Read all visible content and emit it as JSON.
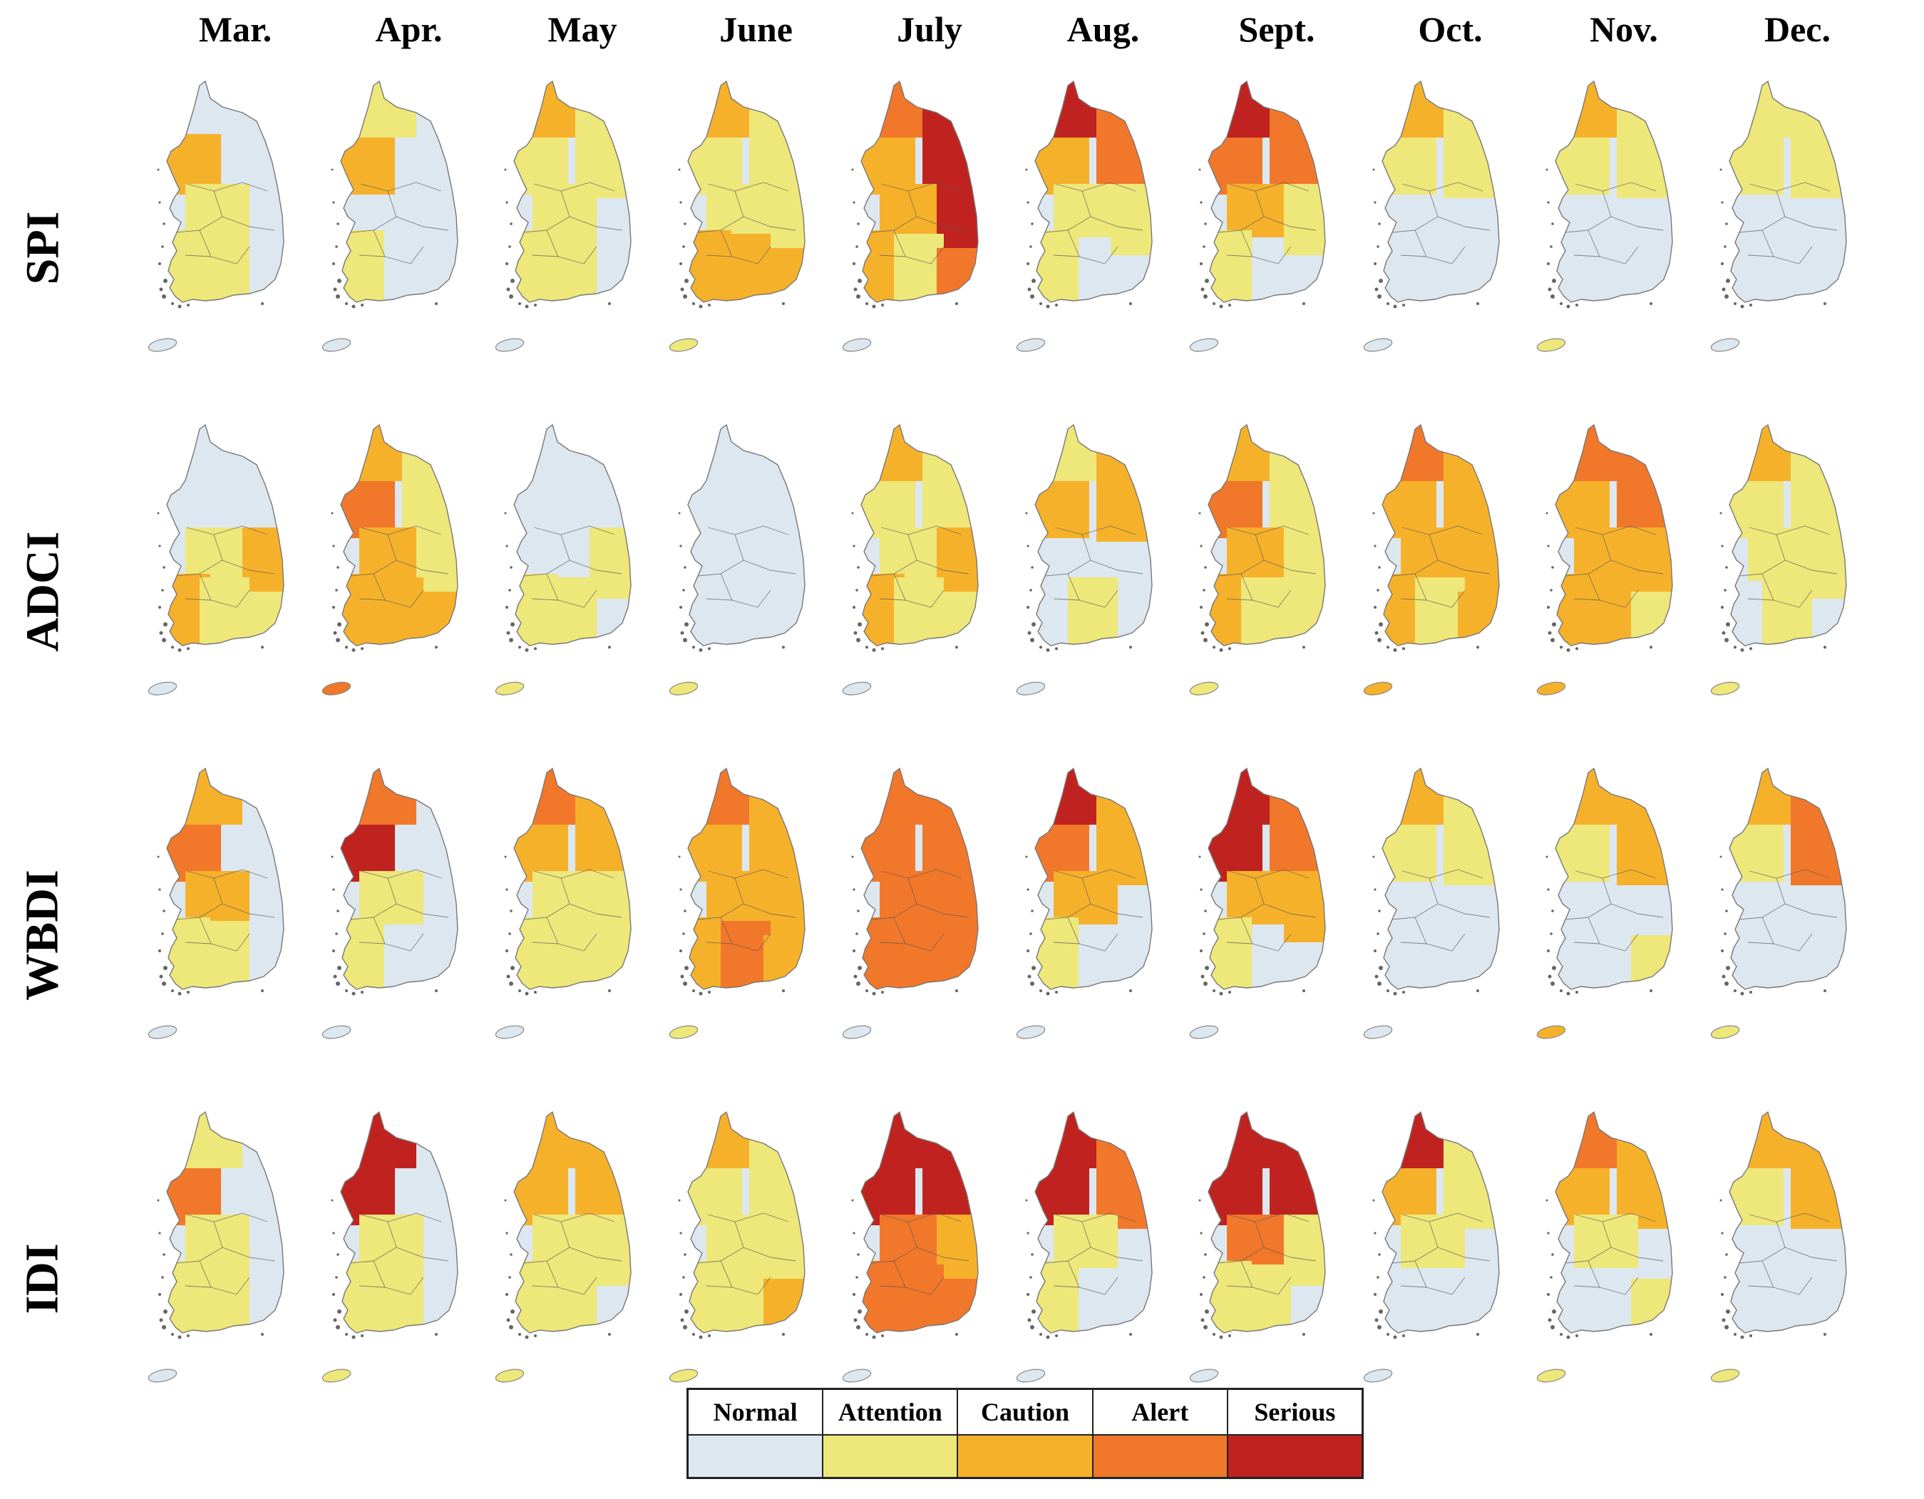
{
  "months": [
    "Mar.",
    "Apr.",
    "May",
    "June",
    "July",
    "Aug.",
    "Sept.",
    "Oct.",
    "Nov.",
    "Dec."
  ],
  "indices": [
    "SPI",
    "ADCI",
    "WBDI",
    "IDI"
  ],
  "legend": [
    {
      "label": "Normal",
      "color": "#dde7f0"
    },
    {
      "label": "Attention",
      "color": "#eee77a"
    },
    {
      "label": "Caution",
      "color": "#f6b12b"
    },
    {
      "label": "Alert",
      "color": "#f1772a"
    },
    {
      "label": "Serious",
      "color": "#c0231f"
    }
  ],
  "maps": {
    "SPI": [
      {
        "month": "Mar.",
        "severity": {
          "northwest": "Caution",
          "north": "Normal",
          "northeast": "Normal",
          "center": "Attention",
          "east": "Normal",
          "southwest": "Attention",
          "south": "Attention",
          "southeast": "Normal",
          "jeju": "Normal"
        }
      },
      {
        "month": "Apr.",
        "severity": {
          "northwest": "Caution",
          "north": "Attention",
          "northeast": "Normal",
          "center": "Normal",
          "east": "Normal",
          "southwest": "Attention",
          "south": "Normal",
          "southeast": "Normal",
          "jeju": "Normal"
        }
      },
      {
        "month": "May",
        "severity": {
          "northwest": "Attention",
          "north": "Caution",
          "northeast": "Attention",
          "center": "Attention",
          "east": "Normal",
          "southwest": "Attention",
          "south": "Attention",
          "southeast": "Normal",
          "jeju": "Normal"
        }
      },
      {
        "month": "June",
        "severity": {
          "northwest": "Attention",
          "north": "Caution",
          "northeast": "Attention",
          "center": "Attention",
          "east": "Attention",
          "southwest": "Caution",
          "south": "Caution",
          "southeast": "Caution",
          "jeju": "Attention"
        }
      },
      {
        "month": "July",
        "severity": {
          "northwest": "Caution",
          "north": "Alert",
          "northeast": "Serious",
          "center": "Caution",
          "east": "Serious",
          "southwest": "Caution",
          "south": "Attention",
          "southeast": "Alert",
          "jeju": "Normal"
        }
      },
      {
        "month": "Aug.",
        "severity": {
          "northwest": "Caution",
          "north": "Serious",
          "northeast": "Alert",
          "center": "Attention",
          "east": "Attention",
          "southwest": "Attention",
          "south": "Normal",
          "southeast": "Normal",
          "jeju": "Normal"
        }
      },
      {
        "month": "Sept.",
        "severity": {
          "northwest": "Alert",
          "north": "Serious",
          "northeast": "Alert",
          "center": "Caution",
          "east": "Attention",
          "southwest": "Attention",
          "south": "Normal",
          "southeast": "Normal",
          "jeju": "Normal"
        }
      },
      {
        "month": "Oct.",
        "severity": {
          "northwest": "Attention",
          "north": "Caution",
          "northeast": "Attention",
          "center": "Normal",
          "east": "Normal",
          "southwest": "Normal",
          "south": "Normal",
          "southeast": "Normal",
          "jeju": "Normal"
        }
      },
      {
        "month": "Nov.",
        "severity": {
          "northwest": "Attention",
          "north": "Caution",
          "northeast": "Attention",
          "center": "Normal",
          "east": "Normal",
          "southwest": "Normal",
          "south": "Normal",
          "southeast": "Normal",
          "jeju": "Attention"
        }
      },
      {
        "month": "Dec.",
        "severity": {
          "northwest": "Attention",
          "north": "Attention",
          "northeast": "Attention",
          "center": "Normal",
          "east": "Normal",
          "southwest": "Normal",
          "south": "Normal",
          "southeast": "Normal",
          "jeju": "Normal"
        }
      }
    ],
    "ADCI": [
      {
        "month": "Mar.",
        "severity": {
          "northwest": "Normal",
          "north": "Normal",
          "northeast": "Normal",
          "center": "Attention",
          "east": "Caution",
          "southwest": "Caution",
          "south": "Attention",
          "southeast": "Attention",
          "jeju": "Normal"
        }
      },
      {
        "month": "Apr.",
        "severity": {
          "northwest": "Alert",
          "north": "Caution",
          "northeast": "Attention",
          "center": "Caution",
          "east": "Attention",
          "southwest": "Caution",
          "south": "Caution",
          "southeast": "Caution",
          "jeju": "Alert"
        }
      },
      {
        "month": "May",
        "severity": {
          "northwest": "Normal",
          "north": "Normal",
          "northeast": "Normal",
          "center": "Normal",
          "east": "Attention",
          "southwest": "Attention",
          "south": "Attention",
          "southeast": "Normal",
          "jeju": "Attention"
        }
      },
      {
        "month": "June",
        "severity": {
          "northwest": "Normal",
          "north": "Normal",
          "northeast": "Normal",
          "center": "Normal",
          "east": "Normal",
          "southwest": "Normal",
          "south": "Normal",
          "southeast": "Normal",
          "jeju": "Attention"
        }
      },
      {
        "month": "July",
        "severity": {
          "northwest": "Attention",
          "north": "Caution",
          "northeast": "Attention",
          "center": "Attention",
          "east": "Caution",
          "southwest": "Caution",
          "south": "Attention",
          "southeast": "Attention",
          "jeju": "Normal"
        }
      },
      {
        "month": "Aug.",
        "severity": {
          "northwest": "Caution",
          "north": "Attention",
          "northeast": "Caution",
          "center": "Normal",
          "east": "Normal",
          "southwest": "Normal",
          "south": "Attention",
          "southeast": "Normal",
          "jeju": "Normal"
        }
      },
      {
        "month": "Sept.",
        "severity": {
          "northwest": "Alert",
          "north": "Caution",
          "northeast": "Attention",
          "center": "Caution",
          "east": "Attention",
          "southwest": "Caution",
          "south": "Attention",
          "southeast": "Attention",
          "jeju": "Attention"
        }
      },
      {
        "month": "Oct.",
        "severity": {
          "northwest": "Caution",
          "north": "Alert",
          "northeast": "Caution",
          "center": "Caution",
          "east": "Caution",
          "southwest": "Caution",
          "south": "Attention",
          "southeast": "Caution",
          "jeju": "Caution"
        }
      },
      {
        "month": "Nov.",
        "severity": {
          "northwest": "Caution",
          "north": "Alert",
          "northeast": "Alert",
          "center": "Caution",
          "east": "Caution",
          "southwest": "Caution",
          "south": "Caution",
          "southeast": "Attention",
          "jeju": "Caution"
        }
      },
      {
        "month": "Dec.",
        "severity": {
          "northwest": "Attention",
          "north": "Caution",
          "northeast": "Attention",
          "center": "Attention",
          "east": "Attention",
          "southwest": "Normal",
          "south": "Attention",
          "southeast": "Normal",
          "jeju": "Attention"
        }
      }
    ],
    "WBDI": [
      {
        "month": "Mar.",
        "severity": {
          "northwest": "Alert",
          "north": "Caution",
          "northeast": "Normal",
          "center": "Caution",
          "east": "Normal",
          "southwest": "Attention",
          "south": "Attention",
          "southeast": "Normal",
          "jeju": "Normal"
        }
      },
      {
        "month": "Apr.",
        "severity": {
          "northwest": "Serious",
          "north": "Alert",
          "northeast": "Normal",
          "center": "Attention",
          "east": "Normal",
          "southwest": "Attention",
          "south": "Normal",
          "southeast": "Normal",
          "jeju": "Normal"
        }
      },
      {
        "month": "May",
        "severity": {
          "northwest": "Caution",
          "north": "Alert",
          "northeast": "Caution",
          "center": "Attention",
          "east": "Attention",
          "southwest": "Attention",
          "south": "Attention",
          "southeast": "Attention",
          "jeju": "Normal"
        }
      },
      {
        "month": "June",
        "severity": {
          "northwest": "Caution",
          "north": "Alert",
          "northeast": "Caution",
          "center": "Caution",
          "east": "Caution",
          "southwest": "Caution",
          "south": "Alert",
          "southeast": "Caution",
          "jeju": "Attention"
        }
      },
      {
        "month": "July",
        "severity": {
          "northwest": "Alert",
          "north": "Alert",
          "northeast": "Alert",
          "center": "Alert",
          "east": "Alert",
          "southwest": "Alert",
          "south": "Alert",
          "southeast": "Alert",
          "jeju": "Normal"
        }
      },
      {
        "month": "Aug.",
        "severity": {
          "northwest": "Alert",
          "north": "Serious",
          "northeast": "Caution",
          "center": "Caution",
          "east": "Normal",
          "southwest": "Attention",
          "south": "Normal",
          "southeast": "Normal",
          "jeju": "Normal"
        }
      },
      {
        "month": "Sept.",
        "severity": {
          "northwest": "Serious",
          "north": "Serious",
          "northeast": "Alert",
          "center": "Caution",
          "east": "Caution",
          "southwest": "Attention",
          "south": "Normal",
          "southeast": "Normal",
          "jeju": "Normal"
        }
      },
      {
        "month": "Oct.",
        "severity": {
          "northwest": "Attention",
          "north": "Caution",
          "northeast": "Attention",
          "center": "Normal",
          "east": "Normal",
          "southwest": "Normal",
          "south": "Normal",
          "southeast": "Normal",
          "jeju": "Normal"
        }
      },
      {
        "month": "Nov.",
        "severity": {
          "northwest": "Attention",
          "north": "Caution",
          "northeast": "Caution",
          "center": "Normal",
          "east": "Normal",
          "southwest": "Normal",
          "south": "Normal",
          "southeast": "Attention",
          "jeju": "Caution"
        }
      },
      {
        "month": "Dec.",
        "severity": {
          "northwest": "Attention",
          "north": "Caution",
          "northeast": "Alert",
          "center": "Normal",
          "east": "Normal",
          "southwest": "Normal",
          "south": "Normal",
          "southeast": "Normal",
          "jeju": "Attention"
        }
      }
    ],
    "IDI": [
      {
        "month": "Mar.",
        "severity": {
          "northwest": "Alert",
          "north": "Attention",
          "northeast": "Normal",
          "center": "Attention",
          "east": "Normal",
          "southwest": "Attention",
          "south": "Attention",
          "southeast": "Normal",
          "jeju": "Normal"
        }
      },
      {
        "month": "Apr.",
        "severity": {
          "northwest": "Serious",
          "north": "Serious",
          "northeast": "Normal",
          "center": "Attention",
          "east": "Normal",
          "southwest": "Attention",
          "south": "Attention",
          "southeast": "Normal",
          "jeju": "Attention"
        }
      },
      {
        "month": "May",
        "severity": {
          "northwest": "Caution",
          "north": "Caution",
          "northeast": "Caution",
          "center": "Attention",
          "east": "Attention",
          "southwest": "Attention",
          "south": "Attention",
          "southeast": "Normal",
          "jeju": "Attention"
        }
      },
      {
        "month": "June",
        "severity": {
          "northwest": "Attention",
          "north": "Caution",
          "northeast": "Attention",
          "center": "Attention",
          "east": "Attention",
          "southwest": "Attention",
          "south": "Attention",
          "southeast": "Caution",
          "jeju": "Attention"
        }
      },
      {
        "month": "July",
        "severity": {
          "northwest": "Serious",
          "north": "Serious",
          "northeast": "Serious",
          "center": "Alert",
          "east": "Caution",
          "southwest": "Alert",
          "south": "Alert",
          "southeast": "Alert",
          "jeju": "Normal"
        }
      },
      {
        "month": "Aug.",
        "severity": {
          "northwest": "Serious",
          "north": "Serious",
          "northeast": "Alert",
          "center": "Attention",
          "east": "Normal",
          "southwest": "Attention",
          "south": "Normal",
          "southeast": "Normal",
          "jeju": "Normal"
        }
      },
      {
        "month": "Sept.",
        "severity": {
          "northwest": "Serious",
          "north": "Serious",
          "northeast": "Serious",
          "center": "Alert",
          "east": "Attention",
          "southwest": "Attention",
          "south": "Attention",
          "southeast": "Normal",
          "jeju": "Normal"
        }
      },
      {
        "month": "Oct.",
        "severity": {
          "northwest": "Caution",
          "north": "Serious",
          "northeast": "Attention",
          "center": "Attention",
          "east": "Normal",
          "southwest": "Normal",
          "south": "Normal",
          "southeast": "Normal",
          "jeju": "Normal"
        }
      },
      {
        "month": "Nov.",
        "severity": {
          "northwest": "Caution",
          "north": "Alert",
          "northeast": "Caution",
          "center": "Attention",
          "east": "Normal",
          "southwest": "Normal",
          "south": "Normal",
          "southeast": "Attention",
          "jeju": "Attention"
        }
      },
      {
        "month": "Dec.",
        "severity": {
          "northwest": "Attention",
          "north": "Caution",
          "northeast": "Caution",
          "center": "Normal",
          "east": "Normal",
          "southwest": "Normal",
          "south": "Normal",
          "southeast": "Normal",
          "jeju": "Attention"
        }
      }
    ]
  }
}
